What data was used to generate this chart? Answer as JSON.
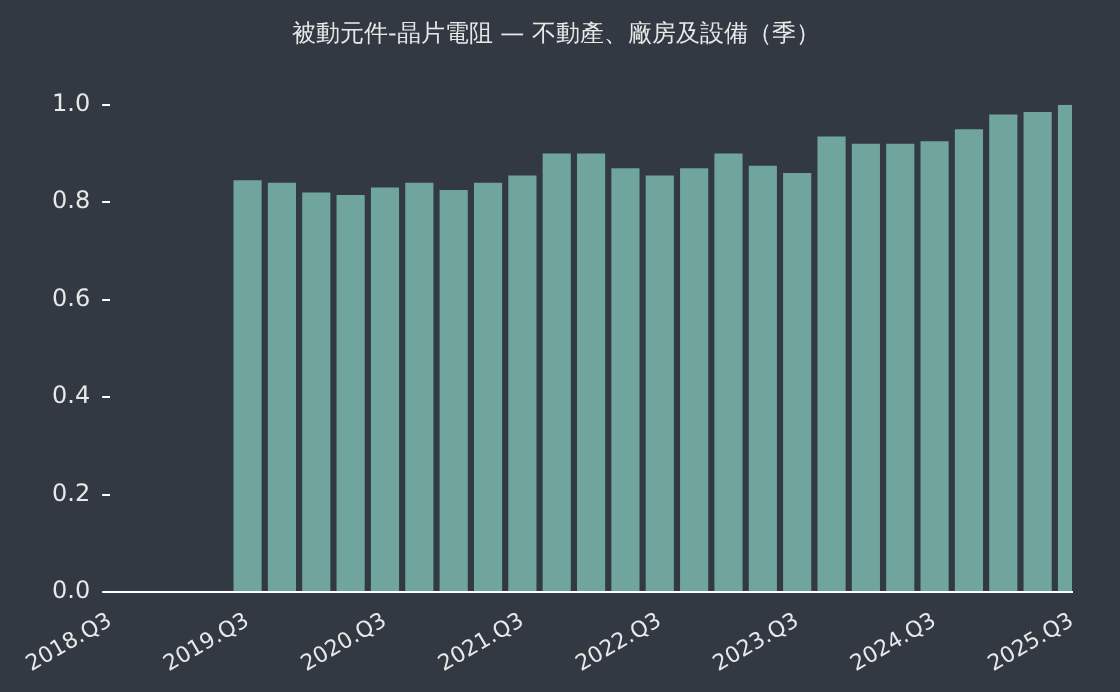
{
  "chart_data": {
    "type": "bar",
    "title": "被動元件-晶片電阻 — 不動產、廠房及設備（季）",
    "categories": [
      "2018.Q3",
      null,
      null,
      null,
      "2019.Q3",
      null,
      null,
      null,
      "2020.Q3",
      null,
      null,
      null,
      "2021.Q3",
      null,
      null,
      null,
      "2022.Q3",
      null,
      null,
      null,
      "2023.Q3",
      null,
      null,
      null,
      "2024.Q3",
      null,
      null,
      null,
      "2025.Q3"
    ],
    "values": [
      null,
      null,
      null,
      null,
      0.845,
      0.84,
      0.82,
      0.815,
      0.83,
      0.84,
      0.825,
      0.84,
      0.855,
      0.9,
      0.9,
      0.87,
      0.855,
      0.87,
      0.9,
      0.875,
      0.86,
      0.935,
      0.92,
      0.92,
      0.925,
      0.95,
      0.98,
      0.985,
      1.0
    ],
    "color": "#6fa59d",
    "ylim": [
      0,
      1
    ],
    "yticks": [
      {
        "value": 0,
        "label": "0.0"
      },
      {
        "value": 0.2,
        "label": "0.2"
      },
      {
        "value": 0.4,
        "label": "0.4"
      },
      {
        "value": 0.6,
        "label": "0.6"
      },
      {
        "value": 0.8,
        "label": "0.8"
      },
      {
        "value": 1,
        "label": "1.0"
      }
    ],
    "grid": false,
    "legend": false
  }
}
